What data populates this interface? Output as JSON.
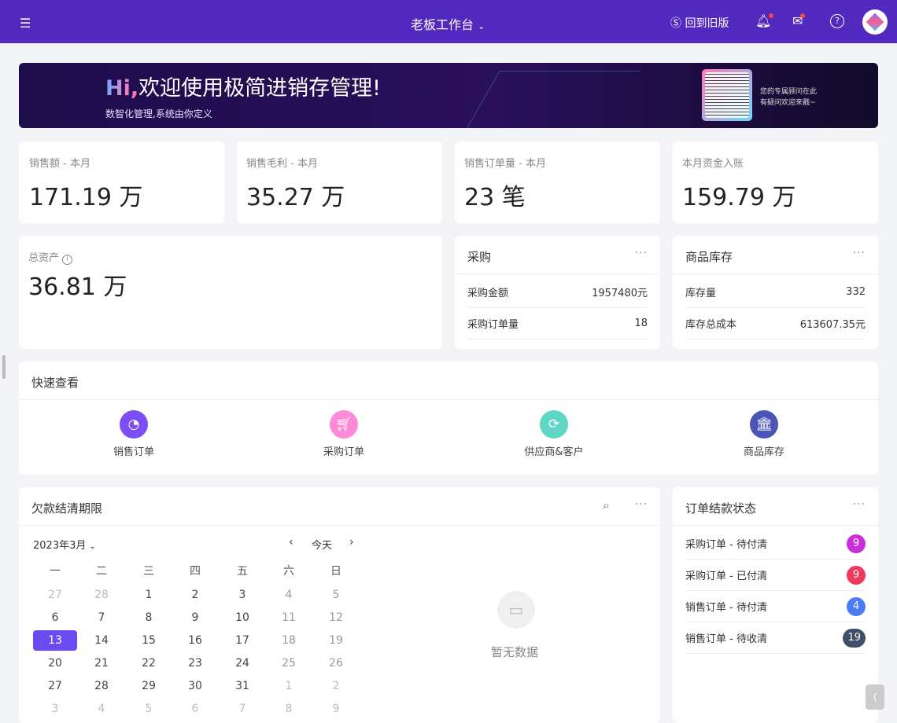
{
  "header": {
    "title": "老板工作台",
    "old_version": "回到旧版"
  },
  "banner": {
    "hi": "Hi",
    "comma": ",",
    "title": "欢迎使用极简进销存管理!",
    "subtitle": "数智化管理,系统由你定义",
    "advisor_line1": "您的专属顾问在此",
    "advisor_line2": "有疑问欢迎来戳~"
  },
  "stats": [
    {
      "label": "销售额 - 本月",
      "value": "171.19 万"
    },
    {
      "label": "销售毛利 - 本月",
      "value": "35.27 万"
    },
    {
      "label": "销售订单量 - 本月",
      "value": "23 笔"
    },
    {
      "label": "本月资金入账",
      "value": "159.79 万"
    }
  ],
  "assets": {
    "label": "总资产",
    "value": "36.81 万"
  },
  "purchase": {
    "title": "采购",
    "rows": [
      {
        "k": "采购金额",
        "v": "1957480元"
      },
      {
        "k": "采购订单量",
        "v": "18"
      }
    ]
  },
  "inventory": {
    "title": "商品库存",
    "rows": [
      {
        "k": "库存量",
        "v": "332"
      },
      {
        "k": "库存总成本",
        "v": "613607.35元"
      }
    ]
  },
  "quick": {
    "title": "快速查看",
    "items": [
      {
        "label": "销售订单",
        "color": "#7b4ff5"
      },
      {
        "label": "采购订单",
        "color": "#ff8ad8"
      },
      {
        "label": "供应商&客户",
        "color": "#5ed6c3"
      },
      {
        "label": "商品库存",
        "color": "#4a55b5"
      }
    ]
  },
  "debt": {
    "title": "欠款结清期限",
    "month": "2023年3月",
    "today": "今天",
    "empty": "暂无数据",
    "weekdays": [
      "一",
      "二",
      "三",
      "四",
      "五",
      "六",
      "日"
    ],
    "weeks": [
      [
        "27",
        "28",
        "1",
        "2",
        "3",
        "4",
        "5"
      ],
      [
        "6",
        "7",
        "8",
        "9",
        "10",
        "11",
        "12"
      ],
      [
        "13",
        "14",
        "15",
        "16",
        "17",
        "18",
        "19"
      ],
      [
        "20",
        "21",
        "22",
        "23",
        "24",
        "25",
        "26"
      ],
      [
        "27",
        "28",
        "29",
        "30",
        "31",
        "1",
        "2"
      ],
      [
        "3",
        "4",
        "5",
        "6",
        "7",
        "8",
        "9"
      ]
    ],
    "selected": "13"
  },
  "status": {
    "title": "订单结款状态",
    "rows": [
      {
        "k": "采购订单 - 待付清",
        "v": "9",
        "color": "#c92fd6"
      },
      {
        "k": "采购订单 - 已付清",
        "v": "9",
        "color": "#f0395e"
      },
      {
        "k": "销售订单 - 待付清",
        "v": "4",
        "color": "#4a7cf5"
      },
      {
        "k": "销售订单 - 待收清",
        "v": "19",
        "color": "#3d5068"
      }
    ]
  }
}
